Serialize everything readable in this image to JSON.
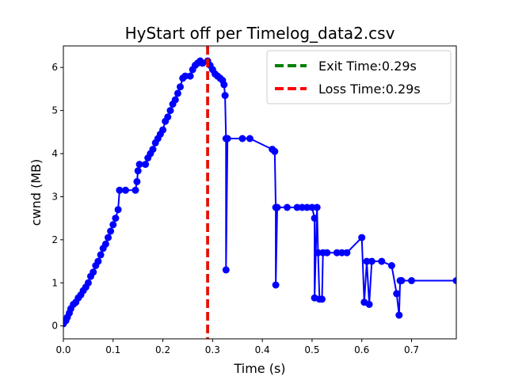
{
  "chart_data": {
    "type": "line",
    "title": "HyStart off per Timelog_data2.csv",
    "xlabel": "Time (s)",
    "ylabel": "cwnd (MB)",
    "xlim": [
      0.0,
      0.79
    ],
    "ylim": [
      -0.3,
      6.5
    ],
    "xticks": [
      "0.0",
      "0.1",
      "0.2",
      "0.3",
      "0.4",
      "0.5",
      "0.6",
      "0.7"
    ],
    "yticks": [
      "0",
      "1",
      "2",
      "3",
      "4",
      "5",
      "6"
    ],
    "grid": false,
    "legend_position": "top-right",
    "series": [
      {
        "name": "",
        "color": "#0000ff",
        "marker": "circle",
        "points": [
          [
            0.0,
            0.05
          ],
          [
            0.005,
            0.12
          ],
          [
            0.008,
            0.2
          ],
          [
            0.012,
            0.3
          ],
          [
            0.015,
            0.4
          ],
          [
            0.02,
            0.5
          ],
          [
            0.025,
            0.55
          ],
          [
            0.03,
            0.65
          ],
          [
            0.035,
            0.72
          ],
          [
            0.04,
            0.82
          ],
          [
            0.045,
            0.9
          ],
          [
            0.05,
            1.0
          ],
          [
            0.055,
            1.15
          ],
          [
            0.06,
            1.25
          ],
          [
            0.065,
            1.4
          ],
          [
            0.07,
            1.5
          ],
          [
            0.075,
            1.65
          ],
          [
            0.08,
            1.8
          ],
          [
            0.085,
            1.9
          ],
          [
            0.09,
            2.05
          ],
          [
            0.095,
            2.2
          ],
          [
            0.1,
            2.35
          ],
          [
            0.105,
            2.5
          ],
          [
            0.11,
            2.7
          ],
          [
            0.113,
            3.15
          ],
          [
            0.125,
            3.15
          ],
          [
            0.145,
            3.15
          ],
          [
            0.148,
            3.35
          ],
          [
            0.15,
            3.6
          ],
          [
            0.153,
            3.75
          ],
          [
            0.165,
            3.75
          ],
          [
            0.17,
            3.9
          ],
          [
            0.175,
            4.0
          ],
          [
            0.18,
            4.1
          ],
          [
            0.185,
            4.25
          ],
          [
            0.19,
            4.35
          ],
          [
            0.195,
            4.45
          ],
          [
            0.2,
            4.55
          ],
          [
            0.205,
            4.75
          ],
          [
            0.21,
            4.85
          ],
          [
            0.215,
            5.0
          ],
          [
            0.22,
            5.15
          ],
          [
            0.225,
            5.25
          ],
          [
            0.23,
            5.4
          ],
          [
            0.235,
            5.55
          ],
          [
            0.24,
            5.75
          ],
          [
            0.245,
            5.8
          ],
          [
            0.255,
            5.8
          ],
          [
            0.26,
            5.95
          ],
          [
            0.265,
            6.05
          ],
          [
            0.27,
            6.1
          ],
          [
            0.275,
            6.15
          ],
          [
            0.28,
            6.1
          ],
          [
            0.29,
            6.15
          ],
          [
            0.295,
            6.05
          ],
          [
            0.3,
            5.95
          ],
          [
            0.305,
            5.85
          ],
          [
            0.31,
            5.8
          ],
          [
            0.315,
            5.75
          ],
          [
            0.32,
            5.7
          ],
          [
            0.323,
            5.6
          ],
          [
            0.325,
            5.35
          ],
          [
            0.327,
            4.35
          ],
          [
            0.327,
            1.3
          ],
          [
            0.33,
            4.35
          ],
          [
            0.36,
            4.35
          ],
          [
            0.375,
            4.35
          ],
          [
            0.42,
            4.1
          ],
          [
            0.425,
            4.05
          ],
          [
            0.427,
            2.75
          ],
          [
            0.427,
            0.95
          ],
          [
            0.43,
            2.75
          ],
          [
            0.45,
            2.75
          ],
          [
            0.47,
            2.75
          ],
          [
            0.48,
            2.75
          ],
          [
            0.49,
            2.75
          ],
          [
            0.5,
            2.75
          ],
          [
            0.505,
            2.5
          ],
          [
            0.505,
            0.65
          ],
          [
            0.51,
            2.75
          ],
          [
            0.512,
            1.7
          ],
          [
            0.515,
            0.62
          ],
          [
            0.52,
            0.62
          ],
          [
            0.522,
            1.7
          ],
          [
            0.53,
            1.7
          ],
          [
            0.55,
            1.7
          ],
          [
            0.56,
            1.7
          ],
          [
            0.57,
            1.7
          ],
          [
            0.6,
            2.05
          ],
          [
            0.605,
            0.55
          ],
          [
            0.61,
            1.5
          ],
          [
            0.615,
            0.5
          ],
          [
            0.62,
            1.5
          ],
          [
            0.64,
            1.5
          ],
          [
            0.66,
            1.4
          ],
          [
            0.67,
            0.75
          ],
          [
            0.675,
            0.25
          ],
          [
            0.677,
            1.05
          ],
          [
            0.68,
            1.05
          ],
          [
            0.7,
            1.05
          ],
          [
            0.79,
            1.05
          ]
        ]
      }
    ],
    "vlines": [
      {
        "label": "Exit Time:0.29s",
        "x": 0.29,
        "color": "#008000",
        "style": "dashed"
      },
      {
        "label": "Loss Time:0.29s",
        "x": 0.29,
        "color": "#ff0000",
        "style": "dashed"
      }
    ]
  }
}
